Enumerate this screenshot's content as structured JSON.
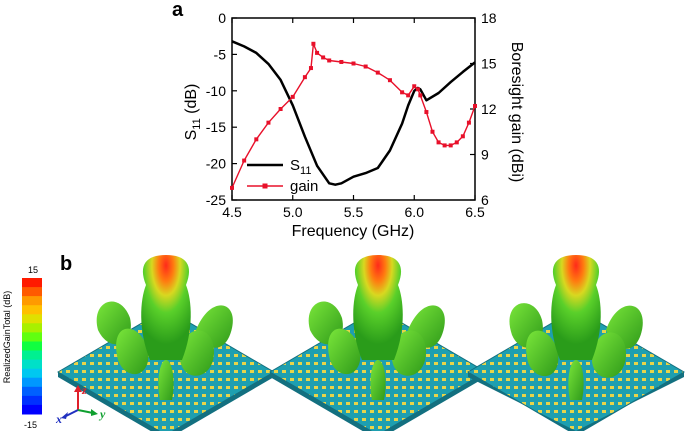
{
  "panels": {
    "a": "a",
    "b": "b"
  },
  "chart_data": {
    "type": "line",
    "title": "",
    "xlabel": "Frequency (GHz)",
    "ylabel_left": "S",
    "ylabel_left_sub": "11",
    "ylabel_left_unit": " (dB)",
    "ylabel_right": "Boresight gain (dBi)",
    "xlim": [
      4.5,
      6.5
    ],
    "ylim_left": [
      -25,
      0
    ],
    "ylim_right": [
      6,
      18
    ],
    "x_ticks": [
      "4.5",
      "5.0",
      "5.5",
      "6.0",
      "6.5"
    ],
    "y_left_ticks": [
      "0",
      "-5",
      "-10",
      "-15",
      "-20",
      "-25"
    ],
    "y_right_ticks": [
      "18",
      "15",
      "12",
      "9",
      "6"
    ],
    "grid": false,
    "legend_position": "bottom-left",
    "series": [
      {
        "name": "S",
        "name_sub": "11",
        "axis": "left",
        "color": "#000000",
        "x": [
          4.5,
          4.6,
          4.7,
          4.8,
          4.9,
          5.0,
          5.1,
          5.2,
          5.3,
          5.35,
          5.4,
          5.5,
          5.6,
          5.7,
          5.8,
          5.9,
          5.95,
          6.0,
          6.03,
          6.05,
          6.1,
          6.2,
          6.3,
          6.4,
          6.5
        ],
        "y": [
          -3.2,
          -3.9,
          -4.8,
          -6.3,
          -8.5,
          -12.0,
          -16.3,
          -20.3,
          -22.7,
          -22.9,
          -22.7,
          -21.8,
          -21.3,
          -20.6,
          -18.2,
          -14.5,
          -12.0,
          -10.0,
          -9.6,
          -9.8,
          -11.3,
          -10.3,
          -8.8,
          -7.4,
          -6.1
        ]
      },
      {
        "name": "gain",
        "axis": "right",
        "color": "#e8102a",
        "marker": "square",
        "x": [
          4.5,
          4.6,
          4.7,
          4.8,
          4.9,
          5.0,
          5.1,
          5.15,
          5.17,
          5.2,
          5.25,
          5.3,
          5.4,
          5.5,
          5.6,
          5.7,
          5.8,
          5.9,
          5.95,
          6.0,
          6.03,
          6.05,
          6.1,
          6.15,
          6.2,
          6.25,
          6.3,
          6.35,
          6.4,
          6.45,
          6.5
        ],
        "y": [
          6.8,
          8.6,
          10.0,
          11.1,
          12.0,
          12.8,
          14.1,
          14.7,
          16.3,
          15.7,
          15.4,
          15.2,
          15.1,
          15.0,
          14.8,
          14.4,
          13.9,
          13.1,
          12.9,
          13.5,
          13.3,
          12.9,
          11.8,
          10.5,
          9.8,
          9.6,
          9.6,
          9.8,
          10.2,
          11.1,
          12.2
        ]
      }
    ]
  },
  "colorbar": {
    "title": "RealizedGainTotal (dB)",
    "max": "15",
    "min": "-15",
    "colors": [
      "#ff1a00",
      "#ff5a00",
      "#ff9a00",
      "#ffc000",
      "#e0e000",
      "#a8f000",
      "#60ff10",
      "#10ff40",
      "#00f090",
      "#00e0c8",
      "#00c8f0",
      "#0098ff",
      "#0060ff",
      "#0030ff",
      "#0000ff"
    ]
  },
  "axes_labels": {
    "z": "z",
    "x": "x",
    "y": "y"
  }
}
